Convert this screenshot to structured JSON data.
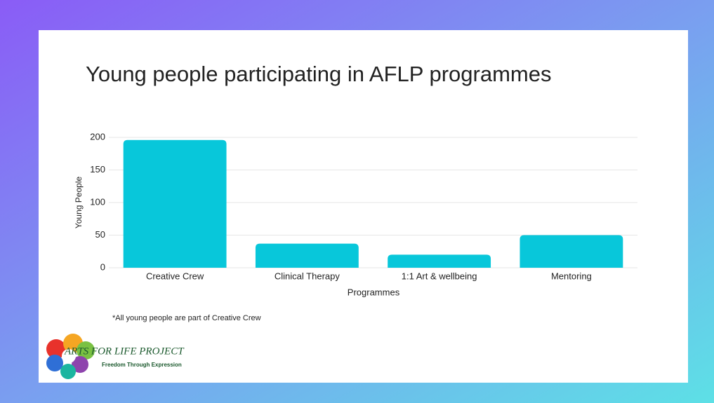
{
  "chart_data": {
    "type": "bar",
    "title": "Young people participating in AFLP programmes",
    "categories": [
      "Creative Crew",
      "Clinical Therapy",
      "1:1 Art & wellbeing",
      "Mentoring"
    ],
    "values": [
      196,
      37,
      20,
      50
    ],
    "color": "#08c7da",
    "ylim": [
      0,
      200
    ],
    "yticks": [
      0,
      50,
      100,
      150,
      200
    ],
    "grid": true,
    "x_label": "Programmes",
    "y_label": "Young People",
    "footnote": "*All young people are part of Creative Crew"
  },
  "logo": {
    "name": "ARTS FOR LIFE PROJECT",
    "tagline": "Freedom Through Expression"
  }
}
